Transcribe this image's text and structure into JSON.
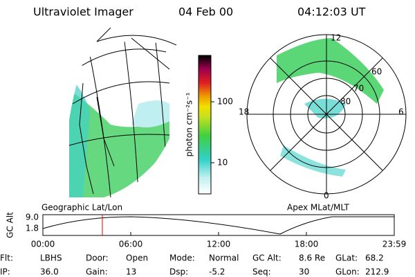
{
  "header": {
    "title": "Ultraviolet Imager",
    "date": "04 Feb 00",
    "time": "04:12:03 UT"
  },
  "left_panel": {
    "label": "Geographic Lat/Lon"
  },
  "colorbar": {
    "label": "photon cm⁻²s⁻¹",
    "ticks": [
      "100",
      "10"
    ]
  },
  "polar_panel": {
    "label": "Apex MLat/MLT",
    "hours": [
      "12",
      "18",
      "6",
      "0"
    ],
    "latitudes": [
      "60",
      "70",
      "80"
    ]
  },
  "altitude_plot": {
    "axis_label": "GC Alt",
    "yticks": [
      "9.0",
      "1.8"
    ],
    "xticks": [
      "00:00",
      "06:00",
      "12:00",
      "18:00",
      "23:59"
    ]
  },
  "info": [
    [
      {
        "label": "Flt:",
        "value": "LBHS"
      },
      {
        "label": "Door:",
        "value": "Open"
      },
      {
        "label": "Mode:",
        "value": "Normal"
      },
      {
        "label": "GC Alt:",
        "value": "8.6 Re"
      },
      {
        "label": "GLat:",
        "value": "68.2"
      }
    ],
    [
      {
        "label": "IP:",
        "value": "36.0"
      },
      {
        "label": "Gain:",
        "value": "13"
      },
      {
        "label": "Dsp:",
        "value": "-5.2"
      },
      {
        "label": "Seq:",
        "value": "30"
      },
      {
        "label": "GLon:",
        "value": "212.9"
      }
    ]
  ]
}
